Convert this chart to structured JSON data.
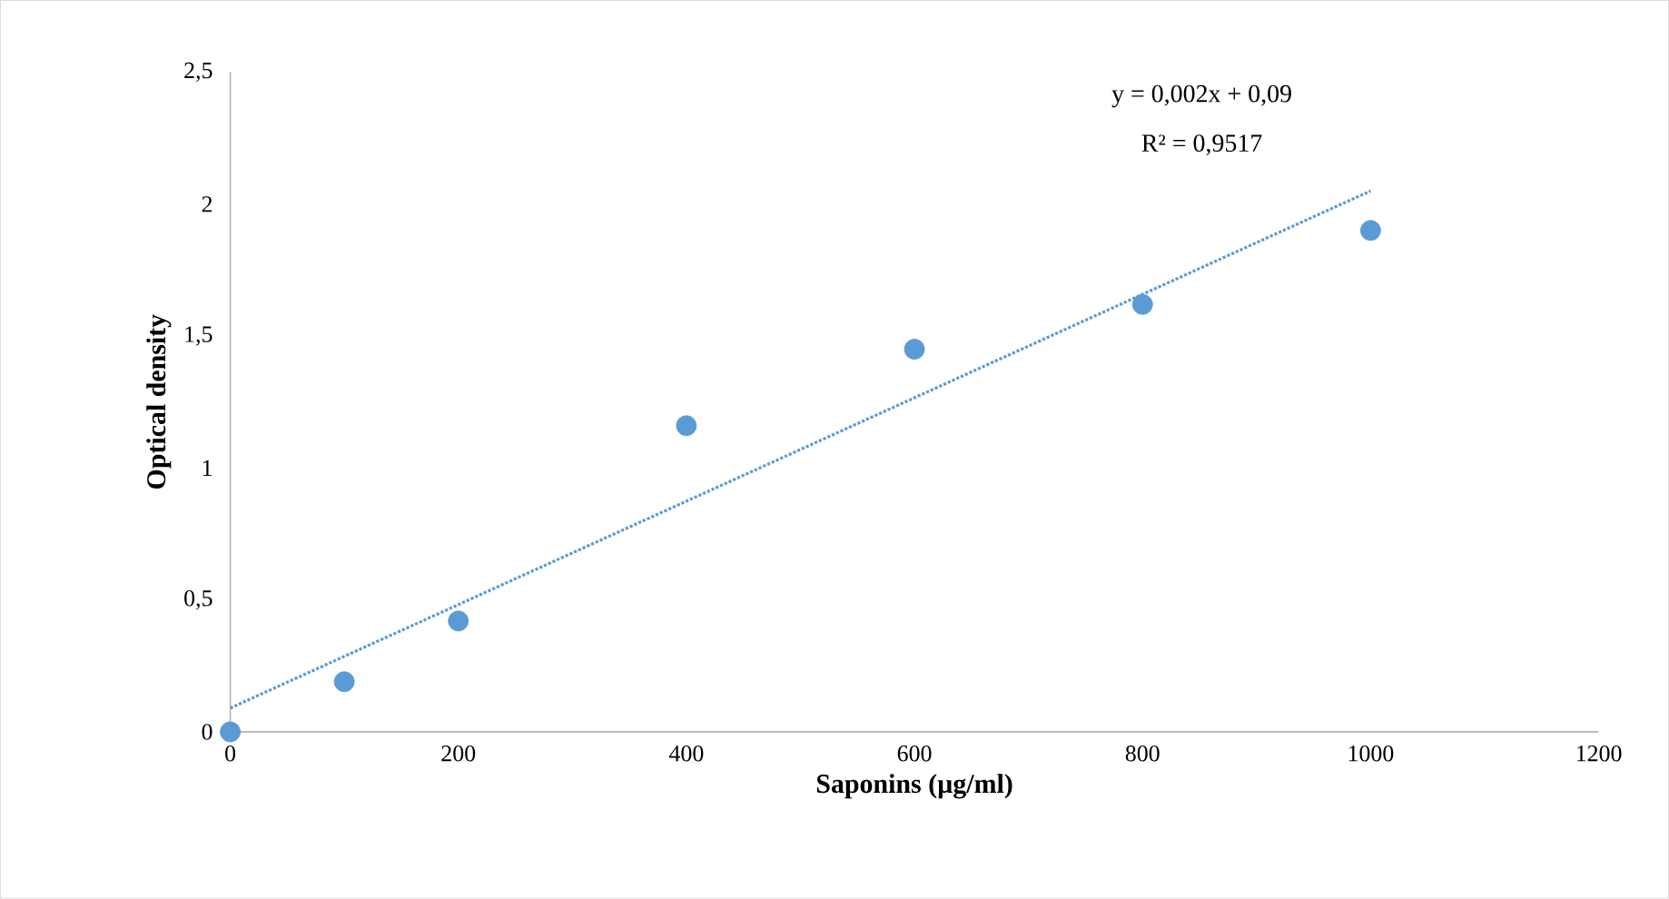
{
  "chart_data": {
    "type": "scatter",
    "xlabel": "Saponins (µg/ml)",
    "ylabel": "Optical density",
    "x": [
      0,
      100,
      200,
      400,
      600,
      800,
      1000
    ],
    "series": [
      {
        "color": "#5b9bd5",
        "marker": "circle",
        "values": [
          0,
          0.19,
          0.42,
          1.16,
          1.45,
          1.62,
          1.9
        ]
      },
      {
        "type": "line",
        "color": "#5b9bd5",
        "line_style": "dotted",
        "marker": "none",
        "x": [
          0,
          1000
        ],
        "values": [
          0.09,
          2.05
        ]
      }
    ],
    "annotations": [
      "y = 0,002x + 0,09",
      "R² = 0,9517"
    ],
    "xlim": [
      0,
      1200
    ],
    "xticks": [
      0,
      200,
      400,
      600,
      800,
      1000,
      1200
    ],
    "ylim": [
      0,
      2.5
    ],
    "yticks": [
      0,
      {
        "value": 0.5,
        "label": "0,5"
      },
      1,
      {
        "value": 1.5,
        "label": "1,5"
      },
      2,
      {
        "value": 2.5,
        "label": "2,5"
      }
    ]
  }
}
